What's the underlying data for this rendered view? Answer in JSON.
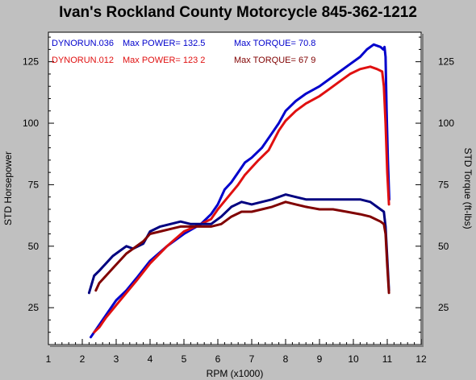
{
  "chart_data": {
    "type": "line",
    "title": "Ivan's Rockland County Motorcycle  845-362-1212",
    "xlabel": "RPM (x1000)",
    "ylabel": "STD Horsepower",
    "y2label": "STD Torque (ft-lbs)",
    "xlim": [
      1,
      12
    ],
    "ylim": [
      10,
      137
    ],
    "x_ticks": [
      "1",
      "2",
      "3",
      "4",
      "5",
      "6",
      "7",
      "8",
      "9",
      "10",
      "11",
      "12"
    ],
    "y_ticks": [
      "25",
      "50",
      "75",
      "100",
      "125"
    ],
    "y2_ticks": [
      "25",
      "50",
      "75",
      "100",
      "125"
    ],
    "grid": false,
    "legend": [
      {
        "run": "DYNORUN.036",
        "power_label": "Max POWER= 132.5",
        "torque_label": "Max TORQUE= 70.8",
        "color": "#0000cc",
        "torque_color": "#000080"
      },
      {
        "run": "DYNORUN.012",
        "power_label": "Max POWER= 123 2",
        "torque_label": "Max TORQUE= 67 9",
        "color": "#e01010",
        "torque_color": "#800000"
      }
    ],
    "series": [
      {
        "name": "DYNORUN.036",
        "kind": "power",
        "color": "#0000cc",
        "x": [
          2.25,
          2.4,
          2.7,
          3.0,
          3.3,
          3.6,
          4.0,
          4.5,
          5.0,
          5.5,
          5.8,
          6.0,
          6.2,
          6.4,
          6.6,
          6.8,
          7.0,
          7.3,
          7.6,
          7.8,
          8.0,
          8.3,
          8.6,
          9.0,
          9.3,
          9.6,
          9.9,
          10.2,
          10.4,
          10.6,
          10.8,
          10.88,
          10.92,
          10.95,
          10.98,
          11.02,
          11.06
        ],
        "y": [
          13,
          16,
          22,
          28,
          32,
          37,
          44,
          50,
          55,
          59,
          63,
          67,
          73,
          76,
          80,
          84,
          86,
          90,
          96,
          100,
          105,
          109,
          112,
          115,
          118,
          121,
          124,
          127,
          130,
          132,
          131,
          130,
          131,
          127,
          105,
          85,
          69
        ]
      },
      {
        "name": "DYNORUN.012",
        "kind": "power",
        "color": "#e01010",
        "x": [
          2.35,
          2.5,
          2.7,
          3.0,
          3.3,
          3.6,
          4.0,
          4.5,
          5.0,
          5.5,
          5.8,
          6.0,
          6.3,
          6.6,
          6.8,
          7.0,
          7.2,
          7.5,
          7.8,
          8.0,
          8.3,
          8.6,
          9.0,
          9.3,
          9.6,
          9.9,
          10.2,
          10.5,
          10.7,
          10.85,
          10.9,
          10.95,
          11.0,
          11.05
        ],
        "y": [
          15,
          17,
          21,
          26,
          31,
          36,
          43,
          50,
          56,
          59,
          61,
          65,
          70,
          75,
          79,
          82,
          85,
          89,
          97,
          101,
          105,
          108,
          111,
          114,
          117,
          120,
          122,
          123,
          122,
          121,
          115,
          100,
          80,
          67
        ]
      },
      {
        "name": "DYNORUN.036",
        "kind": "torque",
        "color": "#000080",
        "x": [
          2.2,
          2.35,
          2.5,
          2.7,
          2.9,
          3.1,
          3.3,
          3.5,
          3.8,
          4.0,
          4.3,
          4.6,
          4.9,
          5.2,
          5.5,
          5.8,
          6.1,
          6.4,
          6.7,
          7.0,
          7.3,
          7.6,
          8.0,
          8.3,
          8.6,
          9.0,
          9.4,
          9.8,
          10.2,
          10.5,
          10.8,
          10.9,
          10.95,
          11.0,
          11.05
        ],
        "y": [
          31,
          38,
          40,
          43,
          46,
          48,
          50,
          49,
          51,
          56,
          58,
          59,
          60,
          59,
          59,
          59,
          62,
          66,
          68,
          67,
          68,
          69,
          71,
          70,
          69,
          69,
          69,
          69,
          69,
          68,
          65,
          64,
          58,
          45,
          32
        ]
      },
      {
        "name": "DYNORUN.012",
        "kind": "torque",
        "color": "#800000",
        "x": [
          2.4,
          2.5,
          2.7,
          2.9,
          3.1,
          3.3,
          3.5,
          3.8,
          4.0,
          4.3,
          4.6,
          4.9,
          5.2,
          5.5,
          5.8,
          6.1,
          6.4,
          6.7,
          7.0,
          7.3,
          7.6,
          8.0,
          8.3,
          8.6,
          9.0,
          9.4,
          9.8,
          10.2,
          10.5,
          10.8,
          10.9,
          10.95,
          11.0,
          11.05
        ],
        "y": [
          32,
          35,
          38,
          41,
          44,
          47,
          49,
          52,
          55,
          56,
          57,
          58,
          58,
          58,
          58,
          59,
          62,
          64,
          64,
          65,
          66,
          68,
          67,
          66,
          65,
          65,
          64,
          63,
          62,
          60,
          59,
          55,
          42,
          31
        ]
      }
    ]
  }
}
